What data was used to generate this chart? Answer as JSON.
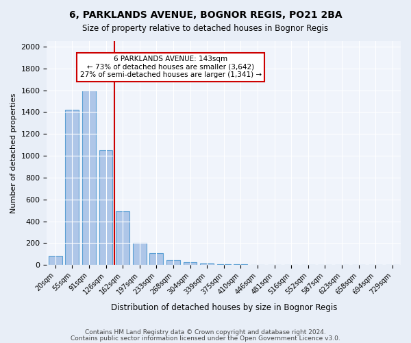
{
  "title1": "6, PARKLANDS AVENUE, BOGNOR REGIS, PO21 2BA",
  "title2": "Size of property relative to detached houses in Bognor Regis",
  "xlabel": "Distribution of detached houses by size in Bognor Regis",
  "ylabel": "Number of detached properties",
  "categories": [
    "20sqm",
    "55sqm",
    "91sqm",
    "126sqm",
    "162sqm",
    "197sqm",
    "233sqm",
    "268sqm",
    "304sqm",
    "339sqm",
    "375sqm",
    "410sqm",
    "446sqm",
    "481sqm",
    "516sqm",
    "552sqm",
    "587sqm",
    "623sqm",
    "658sqm",
    "694sqm",
    "729sqm"
  ],
  "values": [
    80,
    1420,
    1600,
    1050,
    490,
    205,
    105,
    45,
    25,
    15,
    10,
    10,
    0,
    0,
    0,
    0,
    0,
    0,
    0,
    0,
    0
  ],
  "bar_color": "#aec6e8",
  "bar_edge_color": "#5a9fd4",
  "vline_color": "#cc0000",
  "annotation_title": "6 PARKLANDS AVENUE: 143sqm",
  "annotation_line1": "← 73% of detached houses are smaller (3,642)",
  "annotation_line2": "27% of semi-detached houses are larger (1,341) →",
  "annotation_box_color": "#ffffff",
  "annotation_box_edge": "#cc0000",
  "ylim": [
    0,
    2050
  ],
  "yticks": [
    0,
    200,
    400,
    600,
    800,
    1000,
    1200,
    1400,
    1600,
    1800,
    2000
  ],
  "footer1": "Contains HM Land Registry data © Crown copyright and database right 2024.",
  "footer2": "Contains public sector information licensed under the Open Government Licence v3.0.",
  "bg_color": "#e8eef7",
  "plot_bg_color": "#f0f4fb"
}
